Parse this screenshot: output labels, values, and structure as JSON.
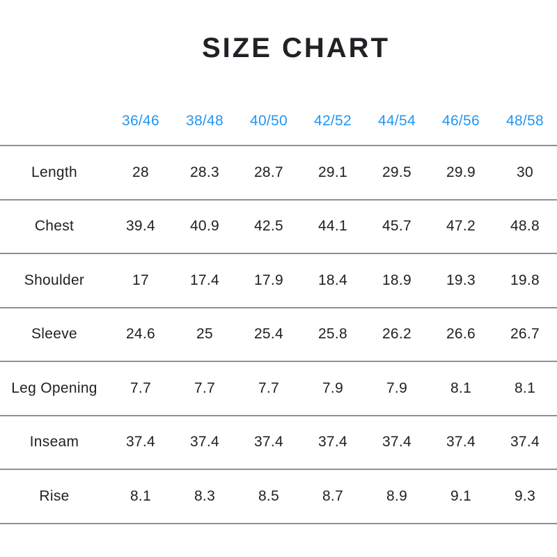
{
  "title": "SIZE CHART",
  "colors": {
    "accent_blue": "#2196f3",
    "text": "#232021",
    "rule_gray": "#8f8f8f",
    "background": "#ffffff"
  },
  "chart_data": {
    "type": "table",
    "title": "SIZE CHART",
    "columns": [
      "",
      "36/46",
      "38/48",
      "40/50",
      "42/52",
      "44/54",
      "46/56",
      "48/58"
    ],
    "rows": [
      [
        "Length",
        28,
        28.3,
        28.7,
        29.1,
        29.5,
        29.9,
        30
      ],
      [
        "Chest",
        39.4,
        40.9,
        42.5,
        44.1,
        45.7,
        47.2,
        48.8
      ],
      [
        "Shoulder",
        17,
        17.4,
        17.9,
        18.4,
        18.9,
        19.3,
        19.8
      ],
      [
        "Sleeve",
        24.6,
        25,
        25.4,
        25.8,
        26.2,
        26.6,
        26.7
      ],
      [
        "Leg Opening",
        7.7,
        7.7,
        7.7,
        7.9,
        7.9,
        8.1,
        8.1
      ],
      [
        "Inseam",
        37.4,
        37.4,
        37.4,
        37.4,
        37.4,
        37.4,
        37.4
      ],
      [
        "Rise",
        8.1,
        8.3,
        8.5,
        8.7,
        8.9,
        9.1,
        9.3
      ]
    ],
    "layout": {
      "header_text_color": "#2196f3",
      "body_text_color": "#232021",
      "row_separator_color": "#8f8f8f",
      "grid": "horizontal-rules-only",
      "legend": "none"
    }
  }
}
